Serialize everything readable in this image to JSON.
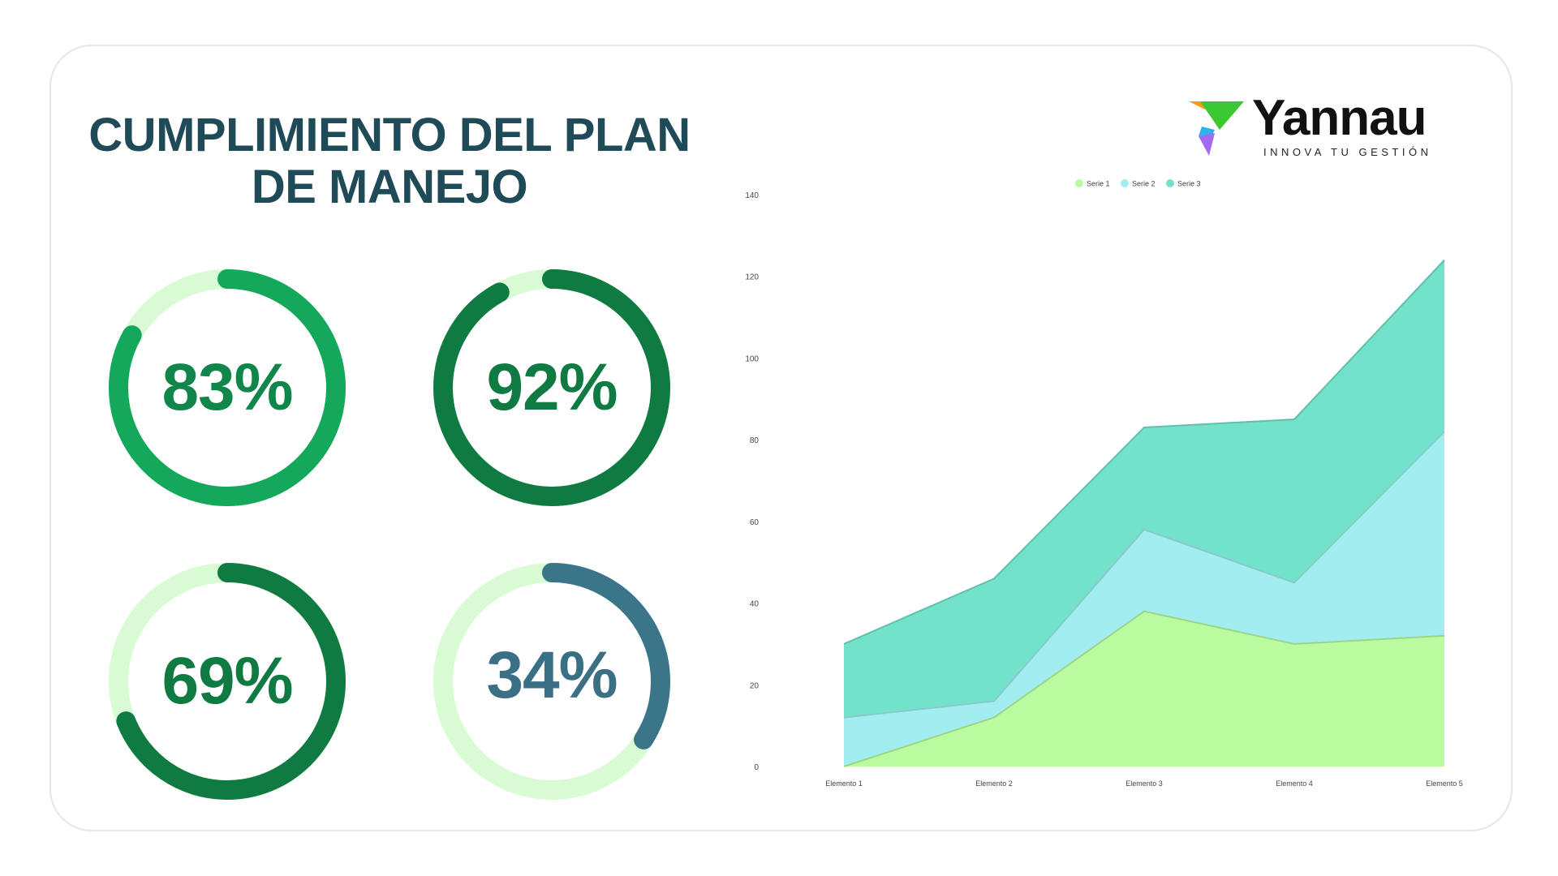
{
  "title": {
    "line1": "CUMPLIMIENTO DEL PLAN",
    "line2": "DE MANEJO"
  },
  "logo": {
    "name": "Yannau",
    "tagline": "INNOVA TU GESTIÓN"
  },
  "gauges": [
    {
      "label": "83%",
      "value": 0.83,
      "color": "#13a85a",
      "text_color": "#10864a"
    },
    {
      "label": "92%",
      "value": 0.92,
      "color": "#0f7a42",
      "text_color": "#0f7a42"
    },
    {
      "label": "69%",
      "value": 0.69,
      "color": "#0f7a42",
      "text_color": "#0f7a42"
    },
    {
      "label": "34%",
      "value": 0.34,
      "color": "#3b758a",
      "text_color": "#3b6f85"
    }
  ],
  "gauge_track_color": "#d8fbd3",
  "chart_data": {
    "type": "area",
    "stacked": true,
    "categories": [
      "Elemento 1",
      "Elemento 2",
      "Elemento 3",
      "Elemento 4",
      "Elemento 5"
    ],
    "series": [
      {
        "name": "Serie 1",
        "values": [
          0,
          12,
          38,
          30,
          32
        ],
        "color": "#b9fb9e"
      },
      {
        "name": "Serie 2",
        "values": [
          12,
          4,
          20,
          15,
          50
        ],
        "color": "#a1edf0"
      },
      {
        "name": "Serie 3",
        "values": [
          18,
          30,
          25,
          40,
          42
        ],
        "color": "#72e2ca"
      }
    ],
    "ylim": [
      0,
      140
    ],
    "yticks": [
      0,
      20,
      40,
      60,
      80,
      100,
      120,
      140
    ],
    "legend_position": "top",
    "grid": false
  }
}
